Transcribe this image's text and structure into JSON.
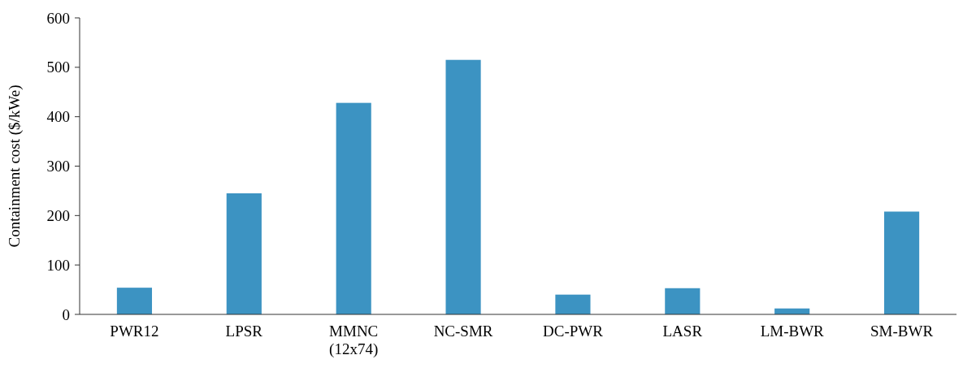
{
  "chart_data": {
    "type": "bar",
    "ylabel": "Containment cost ($/kWe)",
    "categories": [
      "PWR12",
      "LPSR",
      "MMNC (12x74)",
      "NC-SMR",
      "DC-PWR",
      "LASR",
      "LM-BWR",
      "SM-BWR"
    ],
    "values": [
      54,
      245,
      428,
      515,
      40,
      53,
      12,
      208
    ],
    "color": "#3c93c2",
    "ylim": [
      0,
      600
    ],
    "yticks": [
      0,
      100,
      200,
      300,
      400,
      500,
      600
    ],
    "grid": false
  }
}
